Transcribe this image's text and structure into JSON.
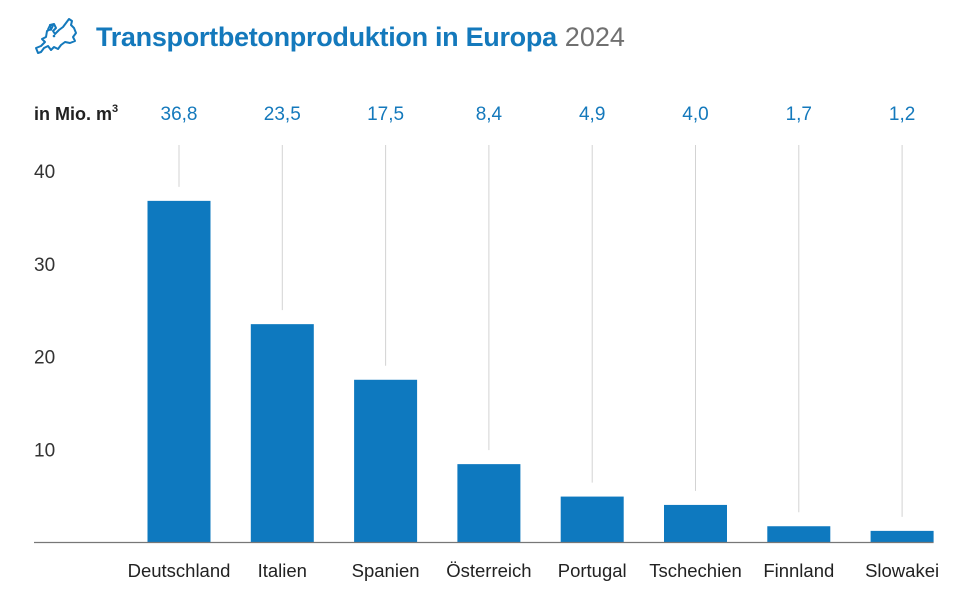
{
  "header": {
    "icon": "europe-map-icon",
    "title": "Transportbetonproduktion in Europa",
    "year": "2024"
  },
  "colors": {
    "bar": "#0E79BF",
    "title": "#1479BC",
    "value_label": "#1479BC",
    "leader_line": "#D3D3D3",
    "baseline": "#777777"
  },
  "chart_data": {
    "type": "bar",
    "title": "Transportbetonproduktion in Europa 2024",
    "unit_label": "in Mio. m",
    "unit_superscript": "3",
    "xlabel": "",
    "ylabel": "in Mio. m³",
    "categories": [
      "Deutschland",
      "Italien",
      "Spanien",
      "Österreich",
      "Portugal",
      "Tschechien",
      "Finnland",
      "Slowakei"
    ],
    "values": [
      36.8,
      23.5,
      17.5,
      8.4,
      4.9,
      4.0,
      1.7,
      1.2
    ],
    "value_labels": [
      "36,8",
      "23,5",
      "17,5",
      "8,4",
      "4,9",
      "4,0",
      "1,7",
      "1,2"
    ],
    "ylim": [
      0,
      40
    ],
    "yticks": [
      10,
      20,
      30,
      40
    ],
    "ytick_labels": [
      "10",
      "20",
      "30",
      "40"
    ],
    "grid": false,
    "value_labels_position": "top-row",
    "legend": null
  }
}
